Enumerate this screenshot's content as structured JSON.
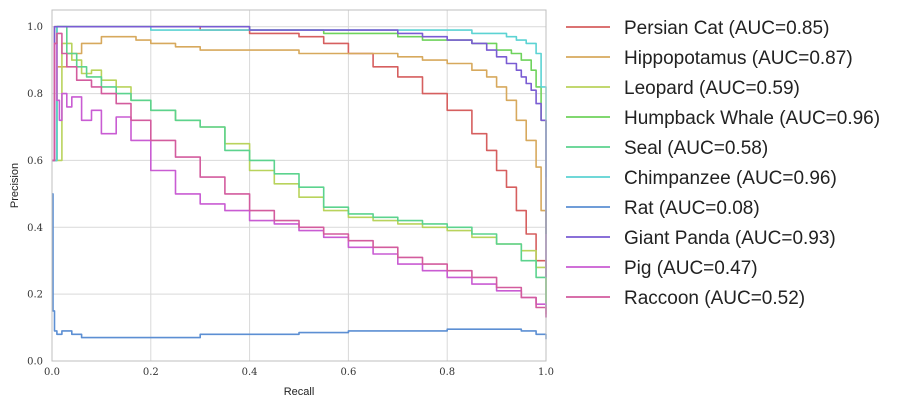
{
  "chart_data": {
    "type": "line",
    "title": "",
    "xlabel": "Recall",
    "ylabel": "Precision",
    "xlim": [
      0.0,
      1.0
    ],
    "ylim": [
      0.0,
      1.05
    ],
    "grid": true,
    "legend_position": "right-outside",
    "xticks": [
      0.0,
      0.2,
      0.4,
      0.6,
      0.8,
      1.0
    ],
    "xtick_labels": [
      "0.0",
      "0.2",
      "0.4",
      "0.6",
      "0.8",
      "1.0"
    ],
    "yticks": [
      0.0,
      0.2,
      0.4,
      0.6,
      0.8,
      1.0
    ],
    "ytick_labels": [
      "0.0",
      "0.2",
      "0.4",
      "0.6",
      "0.8",
      "1.0"
    ],
    "series": [
      {
        "name": "Persian Cat (AUC=0.85)",
        "color": "#d65f5f",
        "x": [
          0.0,
          0.005,
          0.02,
          0.1,
          0.2,
          0.3,
          0.4,
          0.5,
          0.55,
          0.6,
          0.65,
          0.7,
          0.75,
          0.8,
          0.85,
          0.88,
          0.9,
          0.92,
          0.94,
          0.96,
          0.98,
          1.0
        ],
        "y": [
          0.6,
          1.0,
          1.0,
          1.0,
          1.0,
          0.99,
          0.98,
          0.97,
          0.95,
          0.92,
          0.88,
          0.85,
          0.8,
          0.75,
          0.68,
          0.63,
          0.57,
          0.52,
          0.45,
          0.38,
          0.3,
          0.14
        ]
      },
      {
        "name": "Hippopotamus (AUC=0.87)",
        "color": "#d7a95d",
        "x": [
          0.0,
          0.01,
          0.03,
          0.06,
          0.1,
          0.13,
          0.17,
          0.2,
          0.25,
          0.3,
          0.4,
          0.5,
          0.6,
          0.7,
          0.75,
          0.8,
          0.85,
          0.88,
          0.9,
          0.92,
          0.94,
          0.96,
          0.98,
          0.99,
          1.0
        ],
        "y": [
          0.6,
          0.88,
          0.92,
          0.95,
          0.97,
          0.97,
          0.96,
          0.95,
          0.94,
          0.93,
          0.93,
          0.92,
          0.92,
          0.91,
          0.9,
          0.89,
          0.87,
          0.85,
          0.82,
          0.78,
          0.72,
          0.66,
          0.58,
          0.45,
          0.27
        ]
      },
      {
        "name": "Leopard (AUC=0.59)",
        "color": "#b9d35c",
        "x": [
          0.0,
          0.02,
          0.04,
          0.06,
          0.08,
          0.1,
          0.13,
          0.16,
          0.2,
          0.25,
          0.3,
          0.35,
          0.4,
          0.45,
          0.5,
          0.55,
          0.6,
          0.65,
          0.7,
          0.75,
          0.8,
          0.85,
          0.9,
          0.95,
          0.98,
          1.0
        ],
        "y": [
          0.6,
          0.95,
          0.9,
          0.86,
          0.87,
          0.84,
          0.82,
          0.78,
          0.75,
          0.72,
          0.7,
          0.65,
          0.57,
          0.53,
          0.49,
          0.45,
          0.43,
          0.42,
          0.41,
          0.4,
          0.39,
          0.37,
          0.35,
          0.33,
          0.28,
          0.18
        ]
      },
      {
        "name": "Humpback Whale (AUC=0.96)",
        "color": "#6fd35c",
        "x": [
          0.0,
          0.01,
          0.05,
          0.1,
          0.2,
          0.3,
          0.4,
          0.5,
          0.55,
          0.6,
          0.7,
          0.75,
          0.8,
          0.85,
          0.9,
          0.93,
          0.95,
          0.97,
          0.98,
          0.99,
          1.0
        ],
        "y": [
          0.6,
          1.0,
          1.0,
          1.0,
          1.0,
          1.0,
          0.99,
          0.99,
          0.98,
          0.98,
          0.97,
          0.96,
          0.96,
          0.95,
          0.93,
          0.92,
          0.9,
          0.87,
          0.82,
          0.72,
          0.38
        ]
      },
      {
        "name": "Seal (AUC=0.58)",
        "color": "#5cd38e",
        "x": [
          0.0,
          0.01,
          0.03,
          0.05,
          0.07,
          0.1,
          0.13,
          0.16,
          0.2,
          0.25,
          0.3,
          0.35,
          0.4,
          0.45,
          0.5,
          0.55,
          0.6,
          0.65,
          0.7,
          0.75,
          0.8,
          0.85,
          0.9,
          0.95,
          0.98,
          1.0
        ],
        "y": [
          0.6,
          1.0,
          0.92,
          0.88,
          0.85,
          0.82,
          0.8,
          0.78,
          0.75,
          0.72,
          0.7,
          0.63,
          0.6,
          0.56,
          0.52,
          0.46,
          0.44,
          0.43,
          0.42,
          0.41,
          0.4,
          0.38,
          0.35,
          0.3,
          0.25,
          0.15
        ]
      },
      {
        "name": "Chimpanzee (AUC=0.96)",
        "color": "#5cd3d3",
        "x": [
          0.0,
          0.01,
          0.05,
          0.1,
          0.2,
          0.3,
          0.4,
          0.5,
          0.6,
          0.7,
          0.8,
          0.85,
          0.9,
          0.92,
          0.94,
          0.96,
          0.98,
          0.99,
          1.0
        ],
        "y": [
          0.6,
          1.0,
          1.0,
          1.0,
          0.99,
          0.99,
          0.99,
          0.99,
          0.99,
          0.99,
          0.99,
          0.98,
          0.98,
          0.97,
          0.96,
          0.95,
          0.92,
          0.82,
          0.55
        ]
      },
      {
        "name": "Rat (AUC=0.08)",
        "color": "#5c8fd3",
        "x": [
          0.0,
          0.002,
          0.005,
          0.01,
          0.02,
          0.04,
          0.06,
          0.1,
          0.2,
          0.3,
          0.4,
          0.5,
          0.6,
          0.7,
          0.8,
          0.9,
          0.95,
          0.98,
          1.0
        ],
        "y": [
          0.5,
          0.15,
          0.09,
          0.08,
          0.09,
          0.08,
          0.07,
          0.07,
          0.07,
          0.08,
          0.08,
          0.085,
          0.09,
          0.09,
          0.095,
          0.095,
          0.09,
          0.08,
          0.065
        ]
      },
      {
        "name": "Giant Panda (AUC=0.93)",
        "color": "#7a5cd3",
        "x": [
          0.0,
          0.005,
          0.02,
          0.1,
          0.2,
          0.3,
          0.4,
          0.5,
          0.6,
          0.7,
          0.75,
          0.8,
          0.85,
          0.88,
          0.9,
          0.92,
          0.94,
          0.95,
          0.96,
          0.97,
          0.98,
          0.99,
          1.0
        ],
        "y": [
          0.6,
          1.0,
          1.0,
          1.0,
          1.0,
          1.0,
          0.99,
          0.99,
          0.99,
          0.98,
          0.97,
          0.96,
          0.95,
          0.93,
          0.91,
          0.89,
          0.87,
          0.85,
          0.83,
          0.81,
          0.77,
          0.72,
          0.25
        ]
      },
      {
        "name": "Pig (AUC=0.47)",
        "color": "#c95cd3",
        "x": [
          0.0,
          0.005,
          0.01,
          0.015,
          0.02,
          0.03,
          0.04,
          0.06,
          0.08,
          0.1,
          0.13,
          0.16,
          0.2,
          0.25,
          0.3,
          0.35,
          0.4,
          0.45,
          0.5,
          0.55,
          0.6,
          0.65,
          0.7,
          0.75,
          0.8,
          0.85,
          0.9,
          0.95,
          0.98,
          1.0
        ],
        "y": [
          0.6,
          0.95,
          0.78,
          0.72,
          0.8,
          0.76,
          0.79,
          0.72,
          0.75,
          0.68,
          0.73,
          0.66,
          0.57,
          0.5,
          0.47,
          0.45,
          0.42,
          0.41,
          0.39,
          0.37,
          0.34,
          0.32,
          0.29,
          0.27,
          0.25,
          0.23,
          0.21,
          0.19,
          0.17,
          0.13
        ]
      },
      {
        "name": "Raccoon (AUC=0.52)",
        "color": "#d35c9e",
        "x": [
          0.0,
          0.005,
          0.01,
          0.02,
          0.03,
          0.05,
          0.08,
          0.1,
          0.13,
          0.16,
          0.2,
          0.25,
          0.3,
          0.35,
          0.4,
          0.45,
          0.5,
          0.55,
          0.6,
          0.65,
          0.7,
          0.75,
          0.8,
          0.85,
          0.9,
          0.95,
          0.98,
          1.0
        ],
        "y": [
          0.6,
          0.95,
          0.98,
          0.92,
          0.88,
          0.84,
          0.82,
          0.8,
          0.77,
          0.72,
          0.66,
          0.61,
          0.55,
          0.5,
          0.45,
          0.42,
          0.4,
          0.38,
          0.36,
          0.34,
          0.31,
          0.29,
          0.27,
          0.25,
          0.22,
          0.19,
          0.16,
          0.13
        ]
      }
    ]
  }
}
